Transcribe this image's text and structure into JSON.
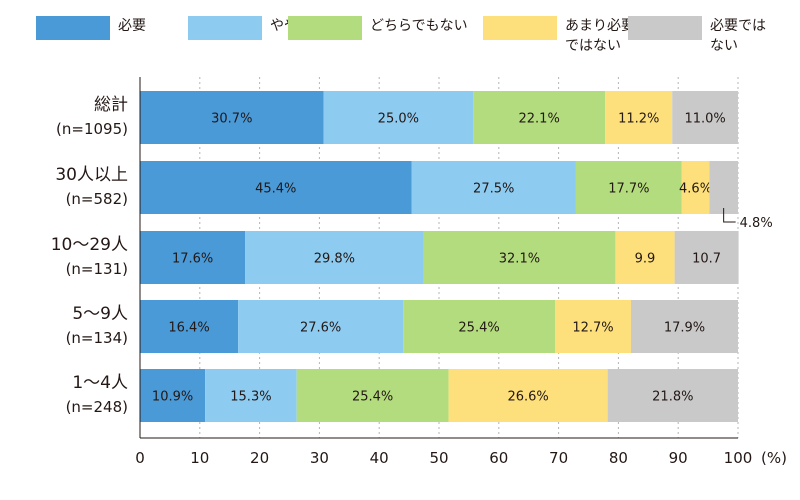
{
  "chart_data": {
    "type": "bar",
    "orientation": "horizontal",
    "stacked": true,
    "categories": [
      {
        "name": "総計",
        "n": "(n=1095)"
      },
      {
        "name": "30人以上",
        "n": "(n=582)"
      },
      {
        "name": "10〜29人",
        "n": "(n=131)"
      },
      {
        "name": "5〜9人",
        "n": "(n=134)"
      },
      {
        "name": "1〜4人",
        "n": "(n=248)"
      }
    ],
    "series": [
      {
        "name": "必要",
        "color": "#4a9ad8",
        "values": [
          30.7,
          45.4,
          17.6,
          16.4,
          10.9
        ],
        "labels": [
          "30.7%",
          "45.4%",
          "17.6%",
          "16.4%",
          "10.9%"
        ]
      },
      {
        "name": "やや必要",
        "color": "#8ecbf0",
        "values": [
          25.0,
          27.5,
          29.8,
          27.6,
          15.3
        ],
        "labels": [
          "25.0%",
          "27.5%",
          "29.8%",
          "27.6%",
          "15.3%"
        ]
      },
      {
        "name": "どちらでもない",
        "color": "#b3dc7e",
        "values": [
          22.1,
          17.7,
          32.1,
          25.4,
          25.4
        ],
        "labels": [
          "22.1%",
          "17.7%",
          "32.1%",
          "25.4%",
          "25.4%"
        ]
      },
      {
        "name": "あまり必要\nではない",
        "color": "#fde07b",
        "values": [
          11.2,
          4.6,
          9.9,
          12.7,
          26.6
        ],
        "labels": [
          "11.2%",
          "4.6%",
          "9.9",
          "12.7%",
          "26.6%"
        ]
      },
      {
        "name": "必要では\nない",
        "color": "#c9c9ca",
        "values": [
          11.0,
          4.8,
          10.7,
          17.9,
          21.8
        ],
        "labels": [
          "11.0%",
          "",
          "10.7",
          "17.9%",
          "21.8%"
        ]
      }
    ],
    "annotation": {
      "category_index": 1,
      "series_index": 4,
      "text": "4.8%"
    },
    "x_ticks": [
      "0",
      "10",
      "20",
      "30",
      "40",
      "50",
      "60",
      "70",
      "80",
      "90",
      "100"
    ],
    "xlim": [
      0,
      100
    ],
    "x_unit": "(%)",
    "legend_position": "top",
    "grid": true
  }
}
